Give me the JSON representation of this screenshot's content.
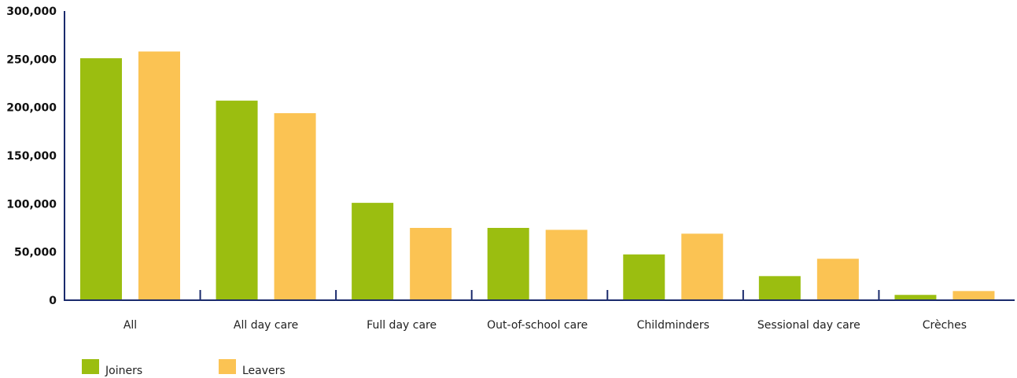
{
  "chart_data": {
    "type": "bar",
    "categories": [
      "All",
      "All day care",
      "Full day care",
      "Out-of-school care",
      "Childminders",
      "Sessional day care",
      "Crèches"
    ],
    "series": [
      {
        "name": "Joiners",
        "color": "#9bbe10",
        "values": [
          251000,
          207000,
          101000,
          75000,
          47500,
          25000,
          5500
        ]
      },
      {
        "name": "Leavers",
        "color": "#fbc353",
        "values": [
          258000,
          194000,
          75000,
          73000,
          69000,
          43000,
          9500
        ]
      }
    ],
    "ylim": [
      0,
      300000
    ],
    "yticks": [
      "0",
      "50,000",
      "100,000",
      "150,000",
      "200,000",
      "250,000",
      "300,000"
    ],
    "grid": false,
    "legend_position": "bottom-left",
    "axis_color": "#1a2a6c"
  }
}
